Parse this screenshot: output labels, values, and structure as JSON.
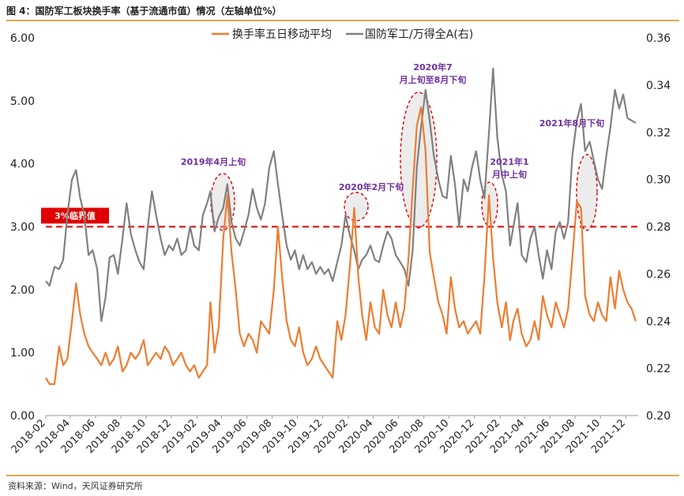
{
  "figure": {
    "title": "图 4：国防军工板块换手率（基于流通市值）情况（左轴单位%）",
    "source": "资料来源：Wind，天风证券研究所"
  },
  "chart_data": {
    "type": "line",
    "xlabel": "",
    "ylabel_left": "",
    "ylabel_right": "",
    "ylim_left": [
      0,
      6
    ],
    "ylim_right": [
      0.2,
      0.36
    ],
    "y_ticks_left": [
      "0.00",
      "1.00",
      "2.00",
      "3.00",
      "4.00",
      "5.00",
      "6.00"
    ],
    "y_ticks_right": [
      "0.20",
      "0.22",
      "0.24",
      "0.26",
      "0.28",
      "0.30",
      "0.32",
      "0.34",
      "0.36"
    ],
    "x_ticks": [
      "2018-02",
      "2018-04",
      "2018-06",
      "2018-08",
      "2018-10",
      "2018-12",
      "2019-02",
      "2019-04",
      "2019-06",
      "2019-08",
      "2019-10",
      "2019-12",
      "2020-02",
      "2020-04",
      "2020-06",
      "2020-08",
      "2020-10",
      "2020-12",
      "2021-02",
      "2021-04",
      "2021-06",
      "2021-08",
      "2021-10",
      "2021-12"
    ],
    "legend_position": "top-center",
    "threshold": {
      "value": 3.0,
      "label": "3%临界值",
      "color": "#e00000"
    },
    "series": [
      {
        "name": "换手率五日移动平均",
        "axis": "left",
        "color": "#ed7d31",
        "x": [
          "2018-02-01",
          "2018-02-10",
          "2018-02-22",
          "2018-03-05",
          "2018-03-15",
          "2018-03-25",
          "2018-04-05",
          "2018-04-15",
          "2018-04-25",
          "2018-05-05",
          "2018-05-15",
          "2018-05-25",
          "2018-06-05",
          "2018-06-15",
          "2018-06-25",
          "2018-07-05",
          "2018-07-15",
          "2018-07-25",
          "2018-08-05",
          "2018-08-15",
          "2018-08-25",
          "2018-09-05",
          "2018-09-15",
          "2018-09-25",
          "2018-10-05",
          "2018-10-15",
          "2018-10-25",
          "2018-11-05",
          "2018-11-15",
          "2018-11-25",
          "2018-12-05",
          "2018-12-15",
          "2018-12-25",
          "2019-01-05",
          "2019-01-15",
          "2019-01-25",
          "2019-02-05",
          "2019-02-15",
          "2019-02-25",
          "2019-03-05",
          "2019-03-15",
          "2019-03-25",
          "2019-04-05",
          "2019-04-15",
          "2019-04-25",
          "2019-05-05",
          "2019-05-15",
          "2019-05-25",
          "2019-06-05",
          "2019-06-15",
          "2019-06-25",
          "2019-07-05",
          "2019-07-15",
          "2019-07-25",
          "2019-08-05",
          "2019-08-15",
          "2019-08-25",
          "2019-09-05",
          "2019-09-15",
          "2019-09-25",
          "2019-10-05",
          "2019-10-15",
          "2019-10-25",
          "2019-11-05",
          "2019-11-15",
          "2019-11-25",
          "2019-12-05",
          "2019-12-15",
          "2019-12-25",
          "2020-01-05",
          "2020-01-15",
          "2020-01-25",
          "2020-02-05",
          "2020-02-15",
          "2020-02-25",
          "2020-03-05",
          "2020-03-15",
          "2020-03-25",
          "2020-04-05",
          "2020-04-15",
          "2020-04-25",
          "2020-05-05",
          "2020-05-15",
          "2020-05-25",
          "2020-06-05",
          "2020-06-15",
          "2020-06-25",
          "2020-07-05",
          "2020-07-15",
          "2020-07-25",
          "2020-08-05",
          "2020-08-15",
          "2020-08-25",
          "2020-09-05",
          "2020-09-15",
          "2020-09-25",
          "2020-10-05",
          "2020-10-15",
          "2020-10-25",
          "2020-11-05",
          "2020-11-15",
          "2020-11-25",
          "2020-12-05",
          "2020-12-15",
          "2020-12-25",
          "2021-01-05",
          "2021-01-15",
          "2021-01-25",
          "2021-02-05",
          "2021-02-15",
          "2021-02-25",
          "2021-03-05",
          "2021-03-15",
          "2021-03-25",
          "2021-04-05",
          "2021-04-15",
          "2021-04-25",
          "2021-05-05",
          "2021-05-15",
          "2021-05-25",
          "2021-06-05",
          "2021-06-15",
          "2021-06-25",
          "2021-07-05",
          "2021-07-15",
          "2021-07-25",
          "2021-08-05",
          "2021-08-15",
          "2021-08-25",
          "2021-09-05",
          "2021-09-15",
          "2021-09-25",
          "2021-10-05",
          "2021-10-15",
          "2021-10-25",
          "2021-11-05",
          "2021-11-15",
          "2021-11-25",
          "2021-12-05",
          "2021-12-15",
          "2021-12-25"
        ],
        "values": [
          0.6,
          0.5,
          0.5,
          1.1,
          0.8,
          0.9,
          1.5,
          2.1,
          1.6,
          1.3,
          1.1,
          1.0,
          0.9,
          0.8,
          1.0,
          0.8,
          0.9,
          1.1,
          0.7,
          0.8,
          1.0,
          0.9,
          1.0,
          1.2,
          0.8,
          0.9,
          1.0,
          0.9,
          1.1,
          1.0,
          0.8,
          0.9,
          1.0,
          0.8,
          0.7,
          0.8,
          0.6,
          0.7,
          0.8,
          1.8,
          1.0,
          1.4,
          2.8,
          3.5,
          2.6,
          2.0,
          1.3,
          1.1,
          1.3,
          1.2,
          1.0,
          1.5,
          1.4,
          1.3,
          2.0,
          3.0,
          2.2,
          1.5,
          1.2,
          1.1,
          1.4,
          1.0,
          0.8,
          0.9,
          1.1,
          0.9,
          0.8,
          0.7,
          0.6,
          1.5,
          1.2,
          1.6,
          2.4,
          3.3,
          2.2,
          1.6,
          1.2,
          1.8,
          1.4,
          1.3,
          2.0,
          1.6,
          1.4,
          1.8,
          1.4,
          1.7,
          2.5,
          3.6,
          4.6,
          4.9,
          4.2,
          2.6,
          2.2,
          1.8,
          1.6,
          1.3,
          2.2,
          1.7,
          1.4,
          1.5,
          1.3,
          1.4,
          1.5,
          1.3,
          2.2,
          3.5,
          2.5,
          1.8,
          1.4,
          1.8,
          1.2,
          1.5,
          1.7,
          1.3,
          1.1,
          1.2,
          1.5,
          1.2,
          1.9,
          1.6,
          1.4,
          1.8,
          1.6,
          1.4,
          1.7,
          2.5,
          3.4,
          3.3,
          1.9,
          1.6,
          1.5,
          1.8,
          1.6,
          1.5,
          2.2,
          1.7,
          2.3,
          2.0,
          1.8,
          1.7,
          1.5
        ]
      },
      {
        "name": "国防军工/万得全A(右)",
        "axis": "right",
        "color": "#808080",
        "x": [
          "2018-02-01",
          "2018-02-10",
          "2018-02-22",
          "2018-03-05",
          "2018-03-15",
          "2018-03-25",
          "2018-04-05",
          "2018-04-15",
          "2018-04-25",
          "2018-05-05",
          "2018-05-15",
          "2018-05-25",
          "2018-06-05",
          "2018-06-15",
          "2018-06-25",
          "2018-07-05",
          "2018-07-15",
          "2018-07-25",
          "2018-08-05",
          "2018-08-15",
          "2018-08-25",
          "2018-09-05",
          "2018-09-15",
          "2018-09-25",
          "2018-10-05",
          "2018-10-15",
          "2018-10-25",
          "2018-11-05",
          "2018-11-15",
          "2018-11-25",
          "2018-12-05",
          "2018-12-15",
          "2018-12-25",
          "2019-01-05",
          "2019-01-15",
          "2019-01-25",
          "2019-02-05",
          "2019-02-15",
          "2019-02-25",
          "2019-03-05",
          "2019-03-15",
          "2019-03-25",
          "2019-04-05",
          "2019-04-15",
          "2019-04-25",
          "2019-05-05",
          "2019-05-15",
          "2019-05-25",
          "2019-06-05",
          "2019-06-15",
          "2019-06-25",
          "2019-07-05",
          "2019-07-15",
          "2019-07-25",
          "2019-08-05",
          "2019-08-15",
          "2019-08-25",
          "2019-09-05",
          "2019-09-15",
          "2019-09-25",
          "2019-10-05",
          "2019-10-15",
          "2019-10-25",
          "2019-11-05",
          "2019-11-15",
          "2019-11-25",
          "2019-12-05",
          "2019-12-15",
          "2019-12-25",
          "2020-01-05",
          "2020-01-15",
          "2020-01-25",
          "2020-02-05",
          "2020-02-15",
          "2020-02-25",
          "2020-03-05",
          "2020-03-15",
          "2020-03-25",
          "2020-04-05",
          "2020-04-15",
          "2020-04-25",
          "2020-05-05",
          "2020-05-15",
          "2020-05-25",
          "2020-06-05",
          "2020-06-15",
          "2020-06-25",
          "2020-07-05",
          "2020-07-15",
          "2020-07-25",
          "2020-08-05",
          "2020-08-15",
          "2020-08-25",
          "2020-09-05",
          "2020-09-15",
          "2020-09-25",
          "2020-10-05",
          "2020-10-15",
          "2020-10-25",
          "2020-11-05",
          "2020-11-15",
          "2020-11-25",
          "2020-12-05",
          "2020-12-15",
          "2020-12-25",
          "2021-01-05",
          "2021-01-15",
          "2021-01-25",
          "2021-02-05",
          "2021-02-15",
          "2021-02-25",
          "2021-03-05",
          "2021-03-15",
          "2021-03-25",
          "2021-04-05",
          "2021-04-15",
          "2021-04-25",
          "2021-05-05",
          "2021-05-15",
          "2021-05-25",
          "2021-06-05",
          "2021-06-15",
          "2021-06-25",
          "2021-07-05",
          "2021-07-15",
          "2021-07-25",
          "2021-08-05",
          "2021-08-15",
          "2021-08-25",
          "2021-09-05",
          "2021-09-15",
          "2021-09-25",
          "2021-10-05",
          "2021-10-15",
          "2021-10-25",
          "2021-11-05",
          "2021-11-15",
          "2021-11-25",
          "2021-12-05",
          "2021-12-15",
          "2021-12-25"
        ],
        "values": [
          0.257,
          0.255,
          0.263,
          0.262,
          0.266,
          0.285,
          0.3,
          0.304,
          0.292,
          0.285,
          0.268,
          0.27,
          0.262,
          0.24,
          0.25,
          0.267,
          0.268,
          0.26,
          0.275,
          0.29,
          0.277,
          0.27,
          0.265,
          0.262,
          0.28,
          0.295,
          0.285,
          0.275,
          0.268,
          0.272,
          0.27,
          0.275,
          0.268,
          0.27,
          0.28,
          0.272,
          0.27,
          0.285,
          0.29,
          0.295,
          0.278,
          0.284,
          0.288,
          0.298,
          0.282,
          0.275,
          0.272,
          0.278,
          0.285,
          0.296,
          0.288,
          0.283,
          0.29,
          0.305,
          0.312,
          0.298,
          0.285,
          0.272,
          0.266,
          0.27,
          0.262,
          0.268,
          0.262,
          0.265,
          0.26,
          0.263,
          0.26,
          0.262,
          0.257,
          0.265,
          0.272,
          0.285,
          0.276,
          0.27,
          0.262,
          0.266,
          0.268,
          0.272,
          0.266,
          0.265,
          0.272,
          0.278,
          0.275,
          0.268,
          0.265,
          0.262,
          0.255,
          0.27,
          0.305,
          0.322,
          0.338,
          0.325,
          0.31,
          0.3,
          0.293,
          0.292,
          0.31,
          0.298,
          0.28,
          0.3,
          0.295,
          0.305,
          0.312,
          0.3,
          0.292,
          0.32,
          0.347,
          0.318,
          0.302,
          0.295,
          0.272,
          0.28,
          0.29,
          0.268,
          0.265,
          0.275,
          0.28,
          0.268,
          0.258,
          0.27,
          0.262,
          0.278,
          0.282,
          0.275,
          0.282,
          0.31,
          0.325,
          0.332,
          0.312,
          0.316,
          0.308,
          0.3,
          0.296,
          0.31,
          0.322,
          0.338,
          0.33,
          0.336,
          0.326,
          0.325,
          0.324
        ]
      }
    ],
    "annotations": [
      {
        "text": "2019年4月上旬",
        "x": "2019-04-10"
      },
      {
        "text": "2020年2月下旬",
        "x": "2020-02-25"
      },
      {
        "text": "2020年7月上旬至8月下旬",
        "x": "2020-07-25"
      },
      {
        "text": "2021年1月中上旬",
        "x": "2021-01-10"
      },
      {
        "text": "2021年8月下旬",
        "x": "2021-08-25"
      }
    ]
  }
}
